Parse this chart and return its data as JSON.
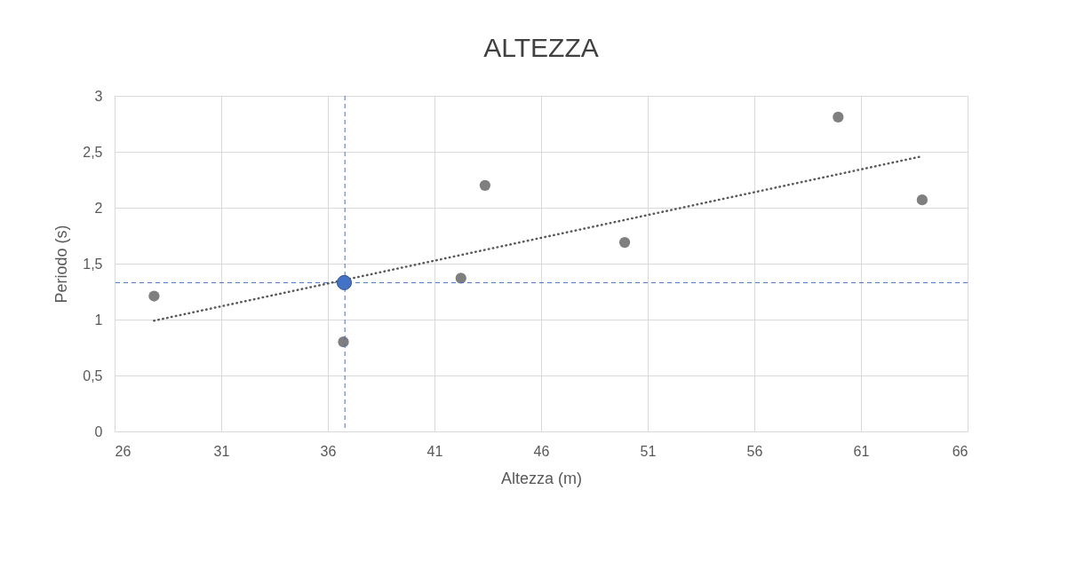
{
  "chart_data": {
    "type": "scatter",
    "title": "ALTEZZA",
    "xlabel": "Altezza (m)",
    "ylabel": "Periodo (s)",
    "xlim": [
      26,
      66
    ],
    "xticks": [
      26,
      31,
      36,
      41,
      46,
      51,
      56,
      61,
      66
    ],
    "ylim": [
      0,
      3
    ],
    "yticks": [
      0,
      {
        "value": 0.5,
        "label": "0,5"
      },
      1,
      {
        "value": 1.5,
        "label": "1,5"
      },
      2,
      {
        "value": 2.5,
        "label": "2,5"
      },
      3
    ],
    "grid": true,
    "legend": false,
    "marker": "circle",
    "series": [
      {
        "color": "#7f7f7f",
        "x": [
          27.85,
          36.73,
          42.24,
          43.37,
          49.92,
          59.93,
          63.87
        ],
        "values": [
          1.21,
          0.8,
          1.37,
          2.2,
          1.69,
          2.81,
          2.07
        ]
      },
      {
        "type": "line",
        "color": "#595959",
        "line_style": "dotted",
        "marker": "none",
        "x": [
          27.85,
          63.87
        ],
        "values": [
          0.99,
          2.46
        ]
      },
      {
        "type": "scatter",
        "color": "#4472c4",
        "x": [
          36.77
        ],
        "values": [
          1.33
        ]
      }
    ],
    "ref_lines": [
      {
        "axis": "x",
        "value": 36.8,
        "color": "#4472c4",
        "line_style": "dashed"
      },
      {
        "axis": "y",
        "value": 1.33,
        "color": "#4472c4",
        "line_style": "dashed"
      }
    ]
  }
}
